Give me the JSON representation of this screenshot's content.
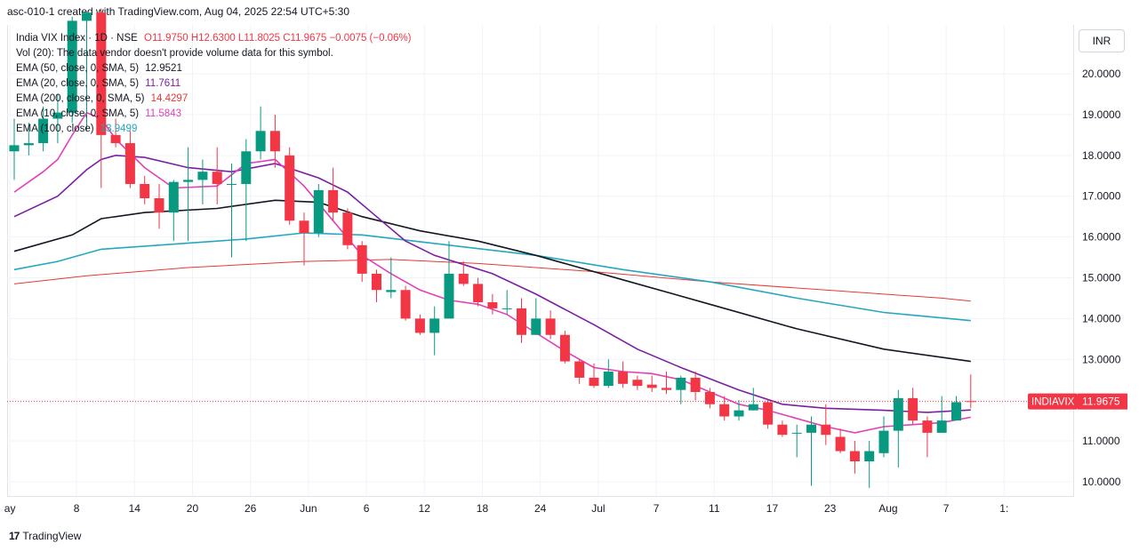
{
  "header": {
    "title": "asc-010-1 created with TradingView.com, Aug 04, 2025 22:54 UTC+5:30"
  },
  "legend": {
    "symbol": "India VIX Index · 1D · NSE",
    "ohlc": "O11.9750 H12.6300 L11.8025 C11.9675 −0.0075 (−0.06%)",
    "vol": "Vol (20): The data vendor doesn't provide volume data for this symbol.",
    "ema50": {
      "label": "EMA (50, close, 0, SMA, 5)",
      "value": "12.9521",
      "color": "#131722"
    },
    "ema20": {
      "label": "EMA (20, close, 0, SMA, 5)",
      "value": "11.7611",
      "color": "#7b1fa2"
    },
    "ema200": {
      "label": "EMA (200, close, 0, SMA, 5)",
      "value": "14.4297",
      "color": "#e53935"
    },
    "ema10": {
      "label": "EMA (10, close, 0, SMA, 5)",
      "value": "11.5843",
      "color": "#e040b8"
    },
    "ema100": {
      "label": "EMA (100, close)",
      "value": "13.9499",
      "color": "#26a7c0"
    }
  },
  "currency": "INR",
  "footer": {
    "brand": "TradingView",
    "mark": "17"
  },
  "colors": {
    "up": "#089981",
    "down": "#f23645",
    "grid": "#f0f3fa",
    "axis_text": "#131722"
  },
  "chart_data": {
    "type": "candlestick",
    "x_ticks": [
      "ay",
      "8",
      "14",
      "20",
      "26",
      "Jun",
      "6",
      "12",
      "18",
      "24",
      "Jul",
      "7",
      "11",
      "17",
      "23",
      "Aug",
      "7",
      "1:"
    ],
    "y_ticks": [
      "20.0000",
      "19.0000",
      "18.0000",
      "17.0000",
      "16.0000",
      "15.0000",
      "14.0000",
      "13.0000",
      "12.0000",
      "11.0000",
      "10.0000"
    ],
    "ylim": [
      9.65,
      21.2
    ],
    "last_price_label": {
      "name": "INDIAVIX",
      "value": "11.9675"
    },
    "candles": [
      {
        "o": 18.1,
        "h": 18.9,
        "l": 17.4,
        "c": 18.25
      },
      {
        "o": 18.25,
        "h": 18.8,
        "l": 18.0,
        "c": 18.3
      },
      {
        "o": 18.3,
        "h": 19.2,
        "l": 18.1,
        "c": 18.9
      },
      {
        "o": 18.9,
        "h": 19.5,
        "l": 18.3,
        "c": 19.05
      },
      {
        "o": 19.05,
        "h": 21.4,
        "l": 18.8,
        "c": 21.3
      },
      {
        "o": 21.3,
        "h": 21.5,
        "l": 18.6,
        "c": 21.5
      },
      {
        "o": 21.5,
        "h": 21.6,
        "l": 17.2,
        "c": 18.5
      },
      {
        "o": 18.5,
        "h": 18.9,
        "l": 18.2,
        "c": 18.3
      },
      {
        "o": 18.3,
        "h": 18.6,
        "l": 17.2,
        "c": 17.3
      },
      {
        "o": 17.3,
        "h": 17.5,
        "l": 16.8,
        "c": 16.95
      },
      {
        "o": 16.95,
        "h": 17.3,
        "l": 16.2,
        "c": 16.6
      },
      {
        "o": 16.6,
        "h": 17.4,
        "l": 15.9,
        "c": 17.35
      },
      {
        "o": 17.35,
        "h": 18.2,
        "l": 15.9,
        "c": 17.4
      },
      {
        "o": 17.4,
        "h": 17.9,
        "l": 16.8,
        "c": 17.6
      },
      {
        "o": 17.6,
        "h": 18.2,
        "l": 16.8,
        "c": 17.3
      },
      {
        "o": 17.3,
        "h": 17.8,
        "l": 15.5,
        "c": 17.3
      },
      {
        "o": 17.3,
        "h": 18.4,
        "l": 15.9,
        "c": 18.1
      },
      {
        "o": 18.1,
        "h": 19.2,
        "l": 17.9,
        "c": 18.6
      },
      {
        "o": 18.6,
        "h": 19.0,
        "l": 17.7,
        "c": 18.1
      },
      {
        "o": 18.0,
        "h": 18.2,
        "l": 16.3,
        "c": 16.4
      },
      {
        "o": 16.4,
        "h": 16.6,
        "l": 15.3,
        "c": 16.1
      },
      {
        "o": 16.1,
        "h": 17.3,
        "l": 16.0,
        "c": 17.15
      },
      {
        "o": 17.15,
        "h": 17.7,
        "l": 16.4,
        "c": 16.6
      },
      {
        "o": 16.6,
        "h": 16.7,
        "l": 15.7,
        "c": 15.8
      },
      {
        "o": 15.8,
        "h": 15.9,
        "l": 14.9,
        "c": 15.1
      },
      {
        "o": 15.1,
        "h": 15.2,
        "l": 14.4,
        "c": 14.7
      },
      {
        "o": 14.65,
        "h": 15.5,
        "l": 14.5,
        "c": 14.7
      },
      {
        "o": 14.7,
        "h": 14.8,
        "l": 13.95,
        "c": 14.0
      },
      {
        "o": 14.0,
        "h": 14.1,
        "l": 13.6,
        "c": 13.65
      },
      {
        "o": 13.65,
        "h": 14.3,
        "l": 13.1,
        "c": 14.0
      },
      {
        "o": 14.0,
        "h": 15.9,
        "l": 14.0,
        "c": 15.1
      },
      {
        "o": 15.1,
        "h": 15.4,
        "l": 14.8,
        "c": 14.85
      },
      {
        "o": 14.85,
        "h": 15.0,
        "l": 14.3,
        "c": 14.4
      },
      {
        "o": 14.4,
        "h": 14.6,
        "l": 14.1,
        "c": 14.25
      },
      {
        "o": 14.25,
        "h": 14.7,
        "l": 14.1,
        "c": 14.25
      },
      {
        "o": 14.25,
        "h": 14.5,
        "l": 13.4,
        "c": 13.6
      },
      {
        "o": 13.6,
        "h": 14.5,
        "l": 13.6,
        "c": 14.0
      },
      {
        "o": 14.0,
        "h": 14.2,
        "l": 13.5,
        "c": 13.6
      },
      {
        "o": 13.6,
        "h": 13.7,
        "l": 12.9,
        "c": 12.95
      },
      {
        "o": 12.95,
        "h": 13.0,
        "l": 12.4,
        "c": 12.55
      },
      {
        "o": 12.55,
        "h": 12.9,
        "l": 12.3,
        "c": 12.35
      },
      {
        "o": 12.35,
        "h": 13.0,
        "l": 12.3,
        "c": 12.7
      },
      {
        "o": 12.7,
        "h": 12.95,
        "l": 12.3,
        "c": 12.4
      },
      {
        "o": 12.5,
        "h": 12.6,
        "l": 12.25,
        "c": 12.35
      },
      {
        "o": 12.38,
        "h": 12.6,
        "l": 12.2,
        "c": 12.3
      },
      {
        "o": 12.3,
        "h": 12.7,
        "l": 12.15,
        "c": 12.25
      },
      {
        "o": 12.25,
        "h": 12.6,
        "l": 11.9,
        "c": 12.55
      },
      {
        "o": 12.55,
        "h": 12.7,
        "l": 12.0,
        "c": 12.2
      },
      {
        "o": 12.2,
        "h": 12.3,
        "l": 11.8,
        "c": 11.9
      },
      {
        "o": 11.9,
        "h": 12.1,
        "l": 11.5,
        "c": 11.6
      },
      {
        "o": 11.6,
        "h": 12.0,
        "l": 11.5,
        "c": 11.75
      },
      {
        "o": 11.75,
        "h": 12.3,
        "l": 11.75,
        "c": 11.9
      },
      {
        "o": 11.95,
        "h": 12.0,
        "l": 11.3,
        "c": 11.4
      },
      {
        "o": 11.4,
        "h": 11.5,
        "l": 11.1,
        "c": 11.15
      },
      {
        "o": 11.2,
        "h": 11.4,
        "l": 10.6,
        "c": 11.2
      },
      {
        "o": 11.2,
        "h": 11.6,
        "l": 9.9,
        "c": 11.4
      },
      {
        "o": 11.4,
        "h": 11.9,
        "l": 10.9,
        "c": 11.15
      },
      {
        "o": 11.1,
        "h": 11.3,
        "l": 10.7,
        "c": 10.75
      },
      {
        "o": 10.75,
        "h": 11.0,
        "l": 10.2,
        "c": 10.5
      },
      {
        "o": 10.5,
        "h": 11.0,
        "l": 9.85,
        "c": 10.75
      },
      {
        "o": 10.7,
        "h": 11.6,
        "l": 10.6,
        "c": 11.25
      },
      {
        "o": 11.25,
        "h": 12.25,
        "l": 10.35,
        "c": 12.05
      },
      {
        "o": 12.05,
        "h": 12.3,
        "l": 11.4,
        "c": 11.5
      },
      {
        "o": 11.5,
        "h": 11.6,
        "l": 10.6,
        "c": 11.2
      },
      {
        "o": 11.2,
        "h": 12.1,
        "l": 11.2,
        "c": 11.5
      },
      {
        "o": 11.5,
        "h": 12.1,
        "l": 11.6,
        "c": 11.95
      },
      {
        "o": 11.975,
        "h": 12.63,
        "l": 11.8025,
        "c": 11.9675
      }
    ],
    "ema_lines": [
      {
        "name": "EMA 200",
        "color": "#e53935",
        "points": [
          [
            0,
            14.85
          ],
          [
            5,
            15.05
          ],
          [
            12,
            15.25
          ],
          [
            20,
            15.4
          ],
          [
            26,
            15.45
          ],
          [
            32,
            15.35
          ],
          [
            40,
            15.15
          ],
          [
            48,
            14.9
          ],
          [
            56,
            14.7
          ],
          [
            64,
            14.5
          ],
          [
            66,
            14.43
          ]
        ]
      },
      {
        "name": "EMA 100",
        "color": "#26a7c0",
        "points": [
          [
            0,
            15.2
          ],
          [
            3,
            15.4
          ],
          [
            6,
            15.7
          ],
          [
            10,
            15.8
          ],
          [
            16,
            15.95
          ],
          [
            20,
            16.1
          ],
          [
            24,
            16.05
          ],
          [
            30,
            15.8
          ],
          [
            36,
            15.55
          ],
          [
            42,
            15.2
          ],
          [
            48,
            14.9
          ],
          [
            54,
            14.5
          ],
          [
            60,
            14.15
          ],
          [
            66,
            13.95
          ]
        ]
      },
      {
        "name": "EMA 50",
        "color": "#131722",
        "points": [
          [
            0,
            15.65
          ],
          [
            4,
            16.05
          ],
          [
            6,
            16.45
          ],
          [
            9,
            16.6
          ],
          [
            14,
            16.7
          ],
          [
            18,
            16.9
          ],
          [
            21,
            16.85
          ],
          [
            24,
            16.5
          ],
          [
            28,
            16.15
          ],
          [
            32,
            15.9
          ],
          [
            36,
            15.55
          ],
          [
            42,
            14.95
          ],
          [
            48,
            14.35
          ],
          [
            54,
            13.75
          ],
          [
            60,
            13.25
          ],
          [
            66,
            12.95
          ]
        ]
      },
      {
        "name": "EMA 20",
        "color": "#7b1fa2",
        "points": [
          [
            0,
            16.5
          ],
          [
            3,
            17.0
          ],
          [
            5,
            17.65
          ],
          [
            6,
            17.9
          ],
          [
            7,
            18.0
          ],
          [
            9,
            17.95
          ],
          [
            12,
            17.7
          ],
          [
            15,
            17.6
          ],
          [
            18,
            17.8
          ],
          [
            21,
            17.45
          ],
          [
            23,
            17.1
          ],
          [
            25,
            16.5
          ],
          [
            27,
            15.9
          ],
          [
            29,
            15.55
          ],
          [
            33,
            15.1
          ],
          [
            36,
            14.6
          ],
          [
            40,
            13.85
          ],
          [
            43,
            13.25
          ],
          [
            46,
            12.8
          ],
          [
            50,
            12.25
          ],
          [
            53,
            11.9
          ],
          [
            56,
            11.8
          ],
          [
            60,
            11.75
          ],
          [
            63,
            11.7
          ],
          [
            66,
            11.76
          ]
        ]
      },
      {
        "name": "EMA 10",
        "color": "#e040b8",
        "points": [
          [
            0,
            17.1
          ],
          [
            2,
            17.6
          ],
          [
            3,
            17.9
          ],
          [
            4,
            18.5
          ],
          [
            5,
            19.05
          ],
          [
            6,
            18.9
          ],
          [
            7,
            18.4
          ],
          [
            9,
            17.7
          ],
          [
            11,
            17.2
          ],
          [
            14,
            17.25
          ],
          [
            16,
            17.8
          ],
          [
            18,
            17.9
          ],
          [
            20,
            17.25
          ],
          [
            22,
            16.4
          ],
          [
            24,
            15.55
          ],
          [
            26,
            15.1
          ],
          [
            28,
            14.7
          ],
          [
            30,
            14.45
          ],
          [
            32,
            14.35
          ],
          [
            34,
            14.1
          ],
          [
            36,
            13.65
          ],
          [
            38,
            13.2
          ],
          [
            40,
            12.8
          ],
          [
            42,
            12.7
          ],
          [
            44,
            12.65
          ],
          [
            46,
            12.5
          ],
          [
            48,
            12.2
          ],
          [
            50,
            11.9
          ],
          [
            52,
            11.75
          ],
          [
            54,
            11.55
          ],
          [
            56,
            11.35
          ],
          [
            58,
            11.2
          ],
          [
            60,
            11.35
          ],
          [
            62,
            11.4
          ],
          [
            64,
            11.45
          ],
          [
            66,
            11.58
          ]
        ]
      }
    ]
  }
}
